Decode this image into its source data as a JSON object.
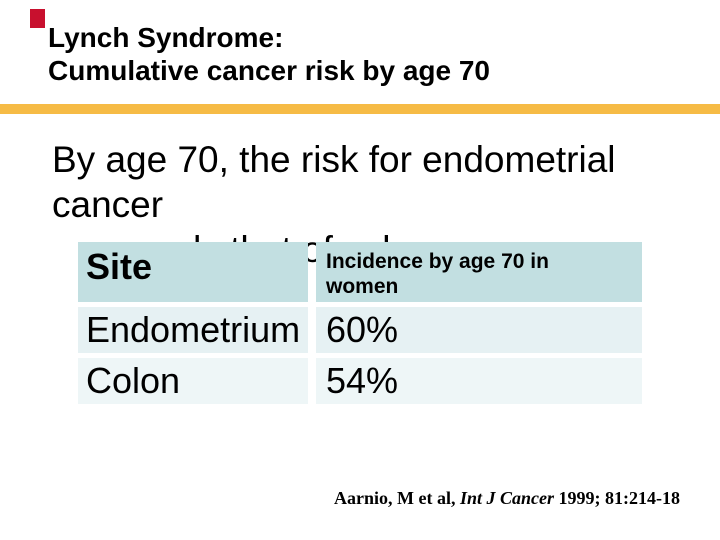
{
  "slide": {
    "title_line1": "Lynch Syndrome:",
    "title_line2": "Cumulative cancer risk by age 70",
    "body_line1": "By age 70, the risk for endometrial cancer",
    "body_line2": "exceeds that of colon cancer:",
    "table": {
      "headers": [
        "Site",
        "Incidence by age 70 in women"
      ],
      "rows": [
        [
          "Endometrium",
          "60%"
        ],
        [
          "Colon",
          "54%"
        ]
      ]
    },
    "citation": {
      "prefix": "Aarnio, M et al, ",
      "journal": "Int J Cancer",
      "suffix": " 1999; 81:214-18"
    },
    "colors": {
      "accent_red": "#C8102E",
      "accent_yellow": "#F6BB45",
      "table_header_bg": "#C2DFE1",
      "table_row1_bg": "#E6F1F3",
      "table_row2_bg": "#EEF6F7"
    }
  }
}
